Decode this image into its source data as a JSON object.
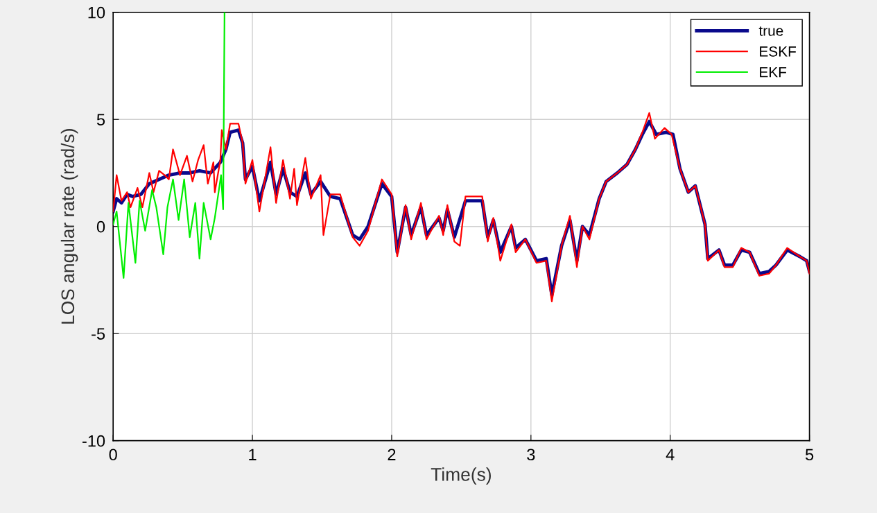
{
  "chart_data": {
    "type": "line",
    "xlabel": "Time(s)",
    "ylabel": "LOS angular rate (rad/s)",
    "xlim": [
      0,
      5
    ],
    "ylim": [
      -10,
      10
    ],
    "xticks": [
      0,
      1,
      2,
      3,
      4,
      5
    ],
    "yticks": [
      -10,
      -5,
      0,
      5,
      10
    ],
    "grid": true,
    "legend": "top right",
    "marker": "none",
    "line_style": "solid",
    "series": [
      {
        "name": "true",
        "color": "#0a0a8c",
        "x": [
          0,
          0.025,
          0.06,
          0.1,
          0.14,
          0.2,
          0.26,
          0.33,
          0.4,
          0.48,
          0.55,
          0.62,
          0.7,
          0.77,
          0.81,
          0.84,
          0.9,
          0.93,
          0.95,
          1.0,
          1.05,
          1.13,
          1.17,
          1.22,
          1.27,
          1.32,
          1.38,
          1.42,
          1.49,
          1.56,
          1.63,
          1.72,
          1.77,
          1.83,
          1.93,
          2.0,
          2.04,
          2.1,
          2.14,
          2.21,
          2.25,
          2.34,
          2.37,
          2.4,
          2.45,
          2.53,
          2.65,
          2.69,
          2.73,
          2.78,
          2.86,
          2.89,
          2.96,
          3.04,
          3.11,
          3.15,
          3.22,
          3.28,
          3.33,
          3.37,
          3.42,
          3.49,
          3.54,
          3.62,
          3.69,
          3.75,
          3.8,
          3.85,
          3.9,
          3.97,
          4.02,
          4.07,
          4.13,
          4.18,
          4.25,
          4.27,
          4.35,
          4.39,
          4.45,
          4.51,
          4.57,
          4.64,
          4.71,
          4.76,
          4.84,
          4.93,
          4.98,
          5.0
        ],
        "values": [
          0.7,
          1.3,
          1.1,
          1.5,
          1.4,
          1.5,
          2.0,
          2.2,
          2.4,
          2.5,
          2.5,
          2.6,
          2.5,
          3.0,
          3.6,
          4.4,
          4.5,
          3.9,
          2.2,
          2.8,
          1.2,
          3.0,
          1.5,
          2.7,
          1.6,
          1.4,
          2.5,
          1.5,
          2.1,
          1.4,
          1.3,
          -0.4,
          -0.6,
          0.0,
          2.0,
          1.4,
          -1.2,
          0.9,
          -0.4,
          0.9,
          -0.4,
          0.4,
          -0.2,
          0.8,
          -0.5,
          1.2,
          1.2,
          -0.5,
          0.3,
          -1.2,
          0.0,
          -1.0,
          -0.6,
          -1.6,
          -1.5,
          -3.2,
          -0.9,
          0.3,
          -1.6,
          0.0,
          -0.4,
          1.3,
          2.1,
          2.5,
          2.9,
          3.6,
          4.3,
          4.9,
          4.3,
          4.4,
          4.3,
          2.7,
          1.6,
          1.9,
          0.1,
          -1.5,
          -1.1,
          -1.8,
          -1.8,
          -1.1,
          -1.2,
          -2.2,
          -2.1,
          -1.8,
          -1.1,
          -1.4,
          -1.6,
          -2.1
        ]
      },
      {
        "name": "ESKF",
        "color": "#ff0000",
        "x": [
          0,
          0.025,
          0.06,
          0.1,
          0.125,
          0.175,
          0.21,
          0.26,
          0.29,
          0.33,
          0.37,
          0.4,
          0.43,
          0.48,
          0.53,
          0.57,
          0.61,
          0.65,
          0.68,
          0.72,
          0.73,
          0.77,
          0.78,
          0.81,
          0.84,
          0.9,
          0.93,
          0.95,
          1.0,
          1.05,
          1.13,
          1.17,
          1.22,
          1.27,
          1.3,
          1.32,
          1.38,
          1.42,
          1.49,
          1.51,
          1.56,
          1.63,
          1.72,
          1.77,
          1.83,
          1.93,
          2.0,
          2.04,
          2.1,
          2.14,
          2.21,
          2.25,
          2.34,
          2.37,
          2.4,
          2.45,
          2.49,
          2.53,
          2.65,
          2.69,
          2.73,
          2.78,
          2.86,
          2.89,
          2.96,
          3.04,
          3.11,
          3.15,
          3.22,
          3.28,
          3.33,
          3.37,
          3.42,
          3.49,
          3.54,
          3.62,
          3.69,
          3.75,
          3.8,
          3.85,
          3.89,
          3.96,
          4.01,
          4.07,
          4.13,
          4.18,
          4.25,
          4.27,
          4.35,
          4.39,
          4.45,
          4.51,
          4.57,
          4.64,
          4.71,
          4.76,
          4.84,
          4.93,
          4.98,
          5.0
        ],
        "values": [
          0.7,
          2.4,
          1.2,
          1.6,
          0.9,
          1.8,
          0.9,
          2.5,
          1.6,
          2.6,
          2.4,
          2.2,
          3.6,
          2.4,
          3.3,
          2.1,
          3.1,
          3.8,
          2.0,
          3.0,
          1.6,
          3.1,
          4.5,
          3.6,
          4.8,
          4.8,
          3.9,
          2.0,
          3.1,
          0.7,
          3.7,
          1.1,
          3.1,
          1.3,
          2.7,
          1.0,
          3.2,
          1.3,
          2.4,
          -0.4,
          1.5,
          1.5,
          -0.5,
          -0.9,
          -0.2,
          2.2,
          1.5,
          -1.4,
          1.0,
          -0.6,
          1.1,
          -0.6,
          0.5,
          -0.4,
          1.0,
          -0.7,
          -0.9,
          1.4,
          1.4,
          -0.7,
          0.4,
          -1.6,
          0.1,
          -1.2,
          -0.6,
          -1.7,
          -1.6,
          -3.5,
          -0.9,
          0.5,
          -1.9,
          0.0,
          -0.6,
          1.3,
          2.1,
          2.5,
          2.9,
          3.6,
          4.4,
          5.3,
          4.1,
          4.6,
          4.3,
          2.7,
          1.6,
          1.9,
          0.1,
          -1.6,
          -1.1,
          -1.9,
          -1.9,
          -1.0,
          -1.2,
          -2.3,
          -2.2,
          -1.8,
          -1.0,
          -1.4,
          -1.6,
          -2.2
        ]
      },
      {
        "name": "EKF",
        "color": "#00ee00",
        "x": [
          0,
          0.025,
          0.075,
          0.11,
          0.16,
          0.19,
          0.23,
          0.28,
          0.31,
          0.36,
          0.39,
          0.43,
          0.47,
          0.51,
          0.55,
          0.59,
          0.62,
          0.65,
          0.7,
          0.73,
          0.775,
          0.79,
          0.8
        ],
        "values": [
          0.1,
          0.7,
          -2.4,
          1.1,
          -1.7,
          1.2,
          -0.2,
          1.7,
          0.9,
          -1.3,
          0.9,
          2.2,
          0.3,
          2.2,
          -0.5,
          1.1,
          -1.5,
          1.1,
          -0.6,
          0.4,
          2.4,
          0.8,
          10
        ]
      }
    ]
  }
}
